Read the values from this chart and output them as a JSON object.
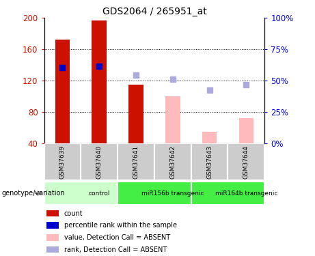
{
  "title": "GDS2064 / 265951_at",
  "samples": [
    "GSM37639",
    "GSM37640",
    "GSM37641",
    "GSM37642",
    "GSM37643",
    "GSM37644"
  ],
  "bar_values": [
    172,
    197,
    115,
    null,
    null,
    null
  ],
  "bar_color": "#CC1100",
  "bar_absent_values": [
    null,
    null,
    null,
    100,
    55,
    72
  ],
  "bar_absent_color": "#FFBBBB",
  "rank_solid": [
    137,
    138,
    null,
    null,
    null,
    null
  ],
  "rank_solid_color": "#0000CC",
  "rank_absent": [
    null,
    null,
    127,
    122,
    108,
    115
  ],
  "rank_absent_color": "#AAAADD",
  "ylim_left": [
    40,
    200
  ],
  "ylim_right": [
    0,
    100
  ],
  "yticks_left": [
    40,
    80,
    120,
    160,
    200
  ],
  "yticks_right": [
    0,
    25,
    50,
    75,
    100
  ],
  "left_tick_color": "#CC1100",
  "right_tick_color": "#0000CC",
  "bar_width": 0.4,
  "rank_marker_size": 6,
  "groups": [
    {
      "label": "control",
      "start": 0,
      "end": 2,
      "light_color": "#CCFFCC",
      "dark_color": "#CCFFCC"
    },
    {
      "label": "miR156b transgenic",
      "start": 2,
      "end": 4,
      "light_color": "#44EE44",
      "dark_color": "#44EE44"
    },
    {
      "label": "miR164b transgenic",
      "start": 4,
      "end": 6,
      "light_color": "#44EE44",
      "dark_color": "#44EE44"
    }
  ],
  "sample_bg_color": "#CCCCCC",
  "genotype_label": "genotype/variation",
  "legend_labels": [
    "count",
    "percentile rank within the sample",
    "value, Detection Call = ABSENT",
    "rank, Detection Call = ABSENT"
  ],
  "legend_colors": [
    "#CC1100",
    "#0000CC",
    "#FFBBBB",
    "#AAAADD"
  ]
}
